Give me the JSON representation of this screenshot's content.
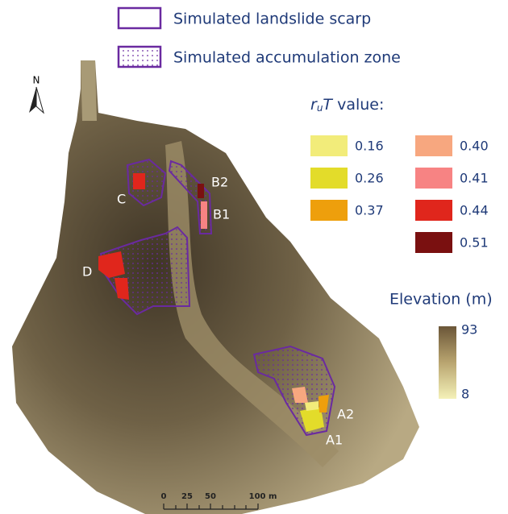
{
  "legend": {
    "scarp": "Simulated landslide scarp",
    "accumulation": "Simulated accumulation zone"
  },
  "north": "N",
  "rut_title": {
    "r": "r",
    "sub": "u",
    "T": "T",
    "rest": " value:"
  },
  "rut_classes": [
    {
      "label": "0.16",
      "color": "#f2ec7a"
    },
    {
      "label": "0.26",
      "color": "#e3dc2a"
    },
    {
      "label": "0.37",
      "color": "#ee9f0c"
    },
    {
      "label": "0.40",
      "color": "#f7a77f"
    },
    {
      "label": "0.41",
      "color": "#f78383"
    },
    {
      "label": "0.44",
      "color": "#e0261c"
    },
    {
      "label": "0.51",
      "color": "#7a1010"
    }
  ],
  "elevation": {
    "title": "Elevation (m)",
    "max": "93",
    "min": "8"
  },
  "sites": [
    "C",
    "B2",
    "B1",
    "D",
    "A2",
    "A1"
  ],
  "scale_bar": [
    "0",
    "25",
    "50",
    "100 m"
  ]
}
